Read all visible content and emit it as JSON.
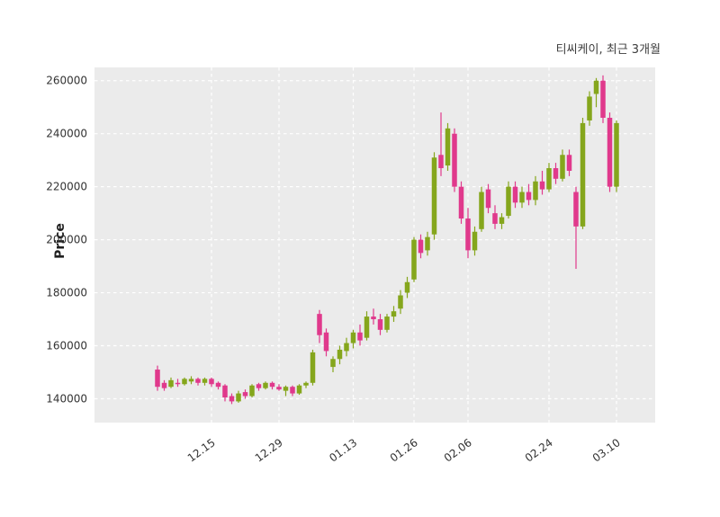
{
  "chart": {
    "title": "티씨케이, 최근 3개월",
    "ylabel": "Price"
  },
  "chart_data": {
    "type": "candlestick",
    "title": "티씨케이, 최근 3개월",
    "ylabel": "Price",
    "xlabel": "",
    "ylim": [
      131000,
      265000
    ],
    "yticks": [
      140000,
      160000,
      180000,
      200000,
      220000,
      240000,
      260000
    ],
    "xtick_labels": [
      "12.15",
      "12.29",
      "01.13",
      "01.26",
      "02.06",
      "02.24",
      "03.10"
    ],
    "xtick_indices": [
      8,
      18,
      29,
      38,
      46,
      58,
      68
    ],
    "grid": true,
    "plot_bg": "#ebebeb",
    "grid_color": "#ffffff",
    "up_color": "#85a61c",
    "down_color": "#e0398c",
    "tick_text_color": "#333333",
    "candles_format": [
      "open",
      "high",
      "low",
      "close"
    ],
    "candles": [
      [
        151000,
        152500,
        143000,
        144500
      ],
      [
        146000,
        147000,
        143000,
        144000
      ],
      [
        144500,
        148000,
        144000,
        147000
      ],
      [
        146000,
        147500,
        144500,
        145500
      ],
      [
        145500,
        148000,
        145000,
        147500
      ],
      [
        146500,
        148500,
        145500,
        147500
      ],
      [
        147500,
        148000,
        145000,
        146000
      ],
      [
        146000,
        148000,
        145000,
        147500
      ],
      [
        147500,
        148000,
        144500,
        145500
      ],
      [
        146000,
        146500,
        143500,
        144500
      ],
      [
        145000,
        145500,
        139000,
        140500
      ],
      [
        141000,
        142000,
        138000,
        139000
      ],
      [
        139000,
        143000,
        138500,
        142000
      ],
      [
        142500,
        143500,
        140000,
        141000
      ],
      [
        141000,
        145500,
        140500,
        145000
      ],
      [
        145500,
        146000,
        143000,
        144000
      ],
      [
        144000,
        146500,
        143500,
        146000
      ],
      [
        146000,
        146500,
        143500,
        144500
      ],
      [
        144500,
        145500,
        143000,
        143500
      ],
      [
        143000,
        145000,
        141000,
        144500
      ],
      [
        144500,
        145000,
        141000,
        142000
      ],
      [
        142000,
        145500,
        141500,
        145000
      ],
      [
        145000,
        146500,
        144000,
        146000
      ],
      [
        146000,
        158500,
        145000,
        157500
      ],
      [
        172000,
        173500,
        161000,
        164000
      ],
      [
        165000,
        166500,
        156000,
        158000
      ],
      [
        152000,
        156000,
        150000,
        155000
      ],
      [
        155000,
        160000,
        153000,
        158500
      ],
      [
        158000,
        163000,
        156000,
        161000
      ],
      [
        161000,
        166000,
        159000,
        165000
      ],
      [
        165000,
        168000,
        160000,
        162000
      ],
      [
        163000,
        173000,
        162000,
        171000
      ],
      [
        171000,
        174000,
        168000,
        170000
      ],
      [
        170000,
        172000,
        164000,
        166000
      ],
      [
        166000,
        172000,
        165000,
        171000
      ],
      [
        171000,
        175000,
        169000,
        173000
      ],
      [
        174000,
        181000,
        172000,
        179000
      ],
      [
        180000,
        186000,
        178000,
        184000
      ],
      [
        185000,
        201000,
        184000,
        200000
      ],
      [
        200000,
        202000,
        193000,
        195000
      ],
      [
        196000,
        203000,
        194000,
        201000
      ],
      [
        202000,
        233000,
        200000,
        231000
      ],
      [
        232000,
        248000,
        224000,
        227000
      ],
      [
        228000,
        244000,
        226000,
        242000
      ],
      [
        240000,
        242000,
        218000,
        220000
      ],
      [
        220000,
        222000,
        206000,
        208000
      ],
      [
        208000,
        212000,
        193000,
        196000
      ],
      [
        196000,
        205000,
        194000,
        203000
      ],
      [
        204000,
        220000,
        203000,
        218000
      ],
      [
        219000,
        221000,
        210000,
        212000
      ],
      [
        210000,
        213000,
        204000,
        206000
      ],
      [
        206000,
        210000,
        204000,
        208500
      ],
      [
        209000,
        222000,
        208000,
        220000
      ],
      [
        220000,
        222000,
        212000,
        214000
      ],
      [
        214000,
        220000,
        212000,
        218000
      ],
      [
        218000,
        221000,
        213000,
        215000
      ],
      [
        215000,
        224000,
        213000,
        222000
      ],
      [
        222000,
        226000,
        217000,
        219000
      ],
      [
        219000,
        229000,
        218000,
        227000
      ],
      [
        227000,
        229000,
        221000,
        223000
      ],
      [
        223000,
        234000,
        222000,
        232000
      ],
      [
        232000,
        234000,
        224000,
        226000
      ],
      [
        218000,
        220000,
        189000,
        205000
      ],
      [
        205000,
        246000,
        204000,
        244000
      ],
      [
        245000,
        256000,
        243000,
        254000
      ],
      [
        255000,
        261000,
        250000,
        260000
      ],
      [
        260000,
        262000,
        244000,
        246000
      ],
      [
        246000,
        248000,
        218000,
        220000
      ],
      [
        220000,
        245000,
        218000,
        244000
      ]
    ]
  }
}
